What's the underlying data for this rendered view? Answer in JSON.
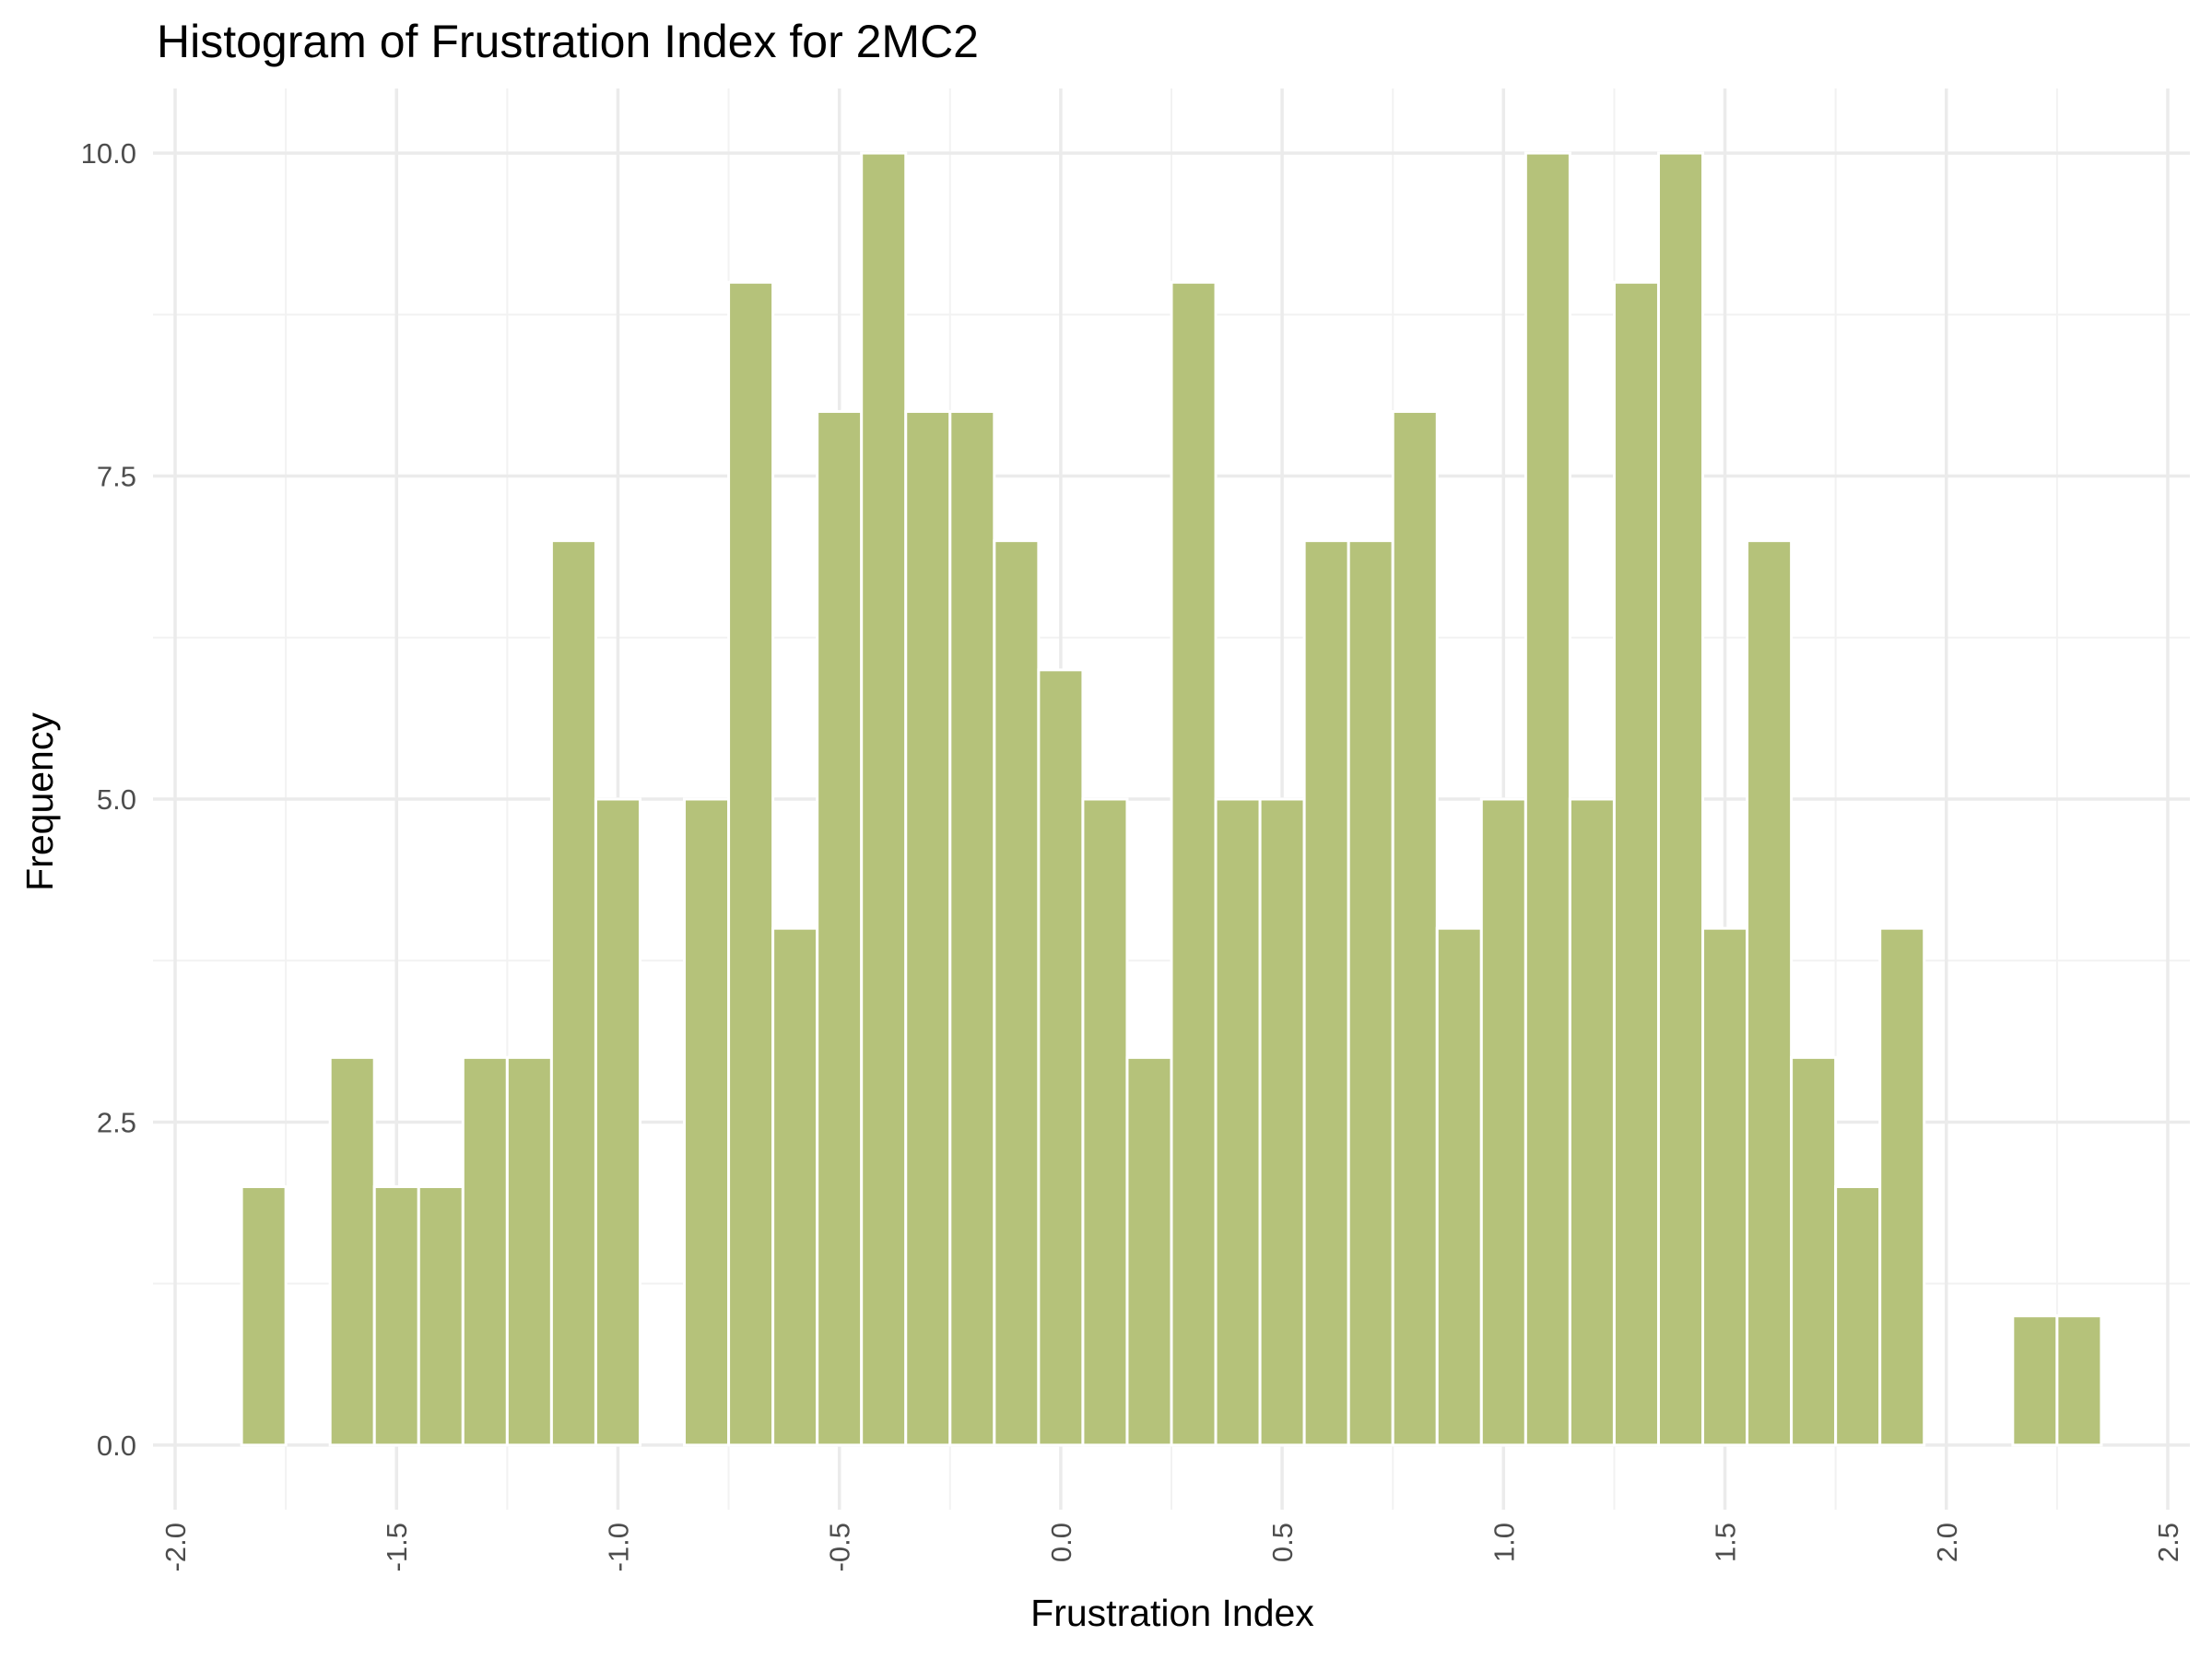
{
  "chart_data": {
    "type": "bar",
    "title": "Histogram of Frustration Index for 2MC2",
    "xlabel": "Frustration Index",
    "ylabel": "Frequency",
    "bin_width": 0.1,
    "bins": [
      {
        "start": -1.85,
        "end": -1.75,
        "count": 2
      },
      {
        "start": -1.75,
        "end": -1.65,
        "count": 0
      },
      {
        "start": -1.65,
        "end": -1.55,
        "count": 3
      },
      {
        "start": -1.55,
        "end": -1.45,
        "count": 2
      },
      {
        "start": -1.45,
        "end": -1.35,
        "count": 2
      },
      {
        "start": -1.35,
        "end": -1.25,
        "count": 3
      },
      {
        "start": -1.25,
        "end": -1.15,
        "count": 3
      },
      {
        "start": -1.15,
        "end": -1.05,
        "count": 7
      },
      {
        "start": -1.05,
        "end": -0.95,
        "count": 5
      },
      {
        "start": -0.95,
        "end": -0.85,
        "count": 0
      },
      {
        "start": -0.85,
        "end": -0.75,
        "count": 5
      },
      {
        "start": -0.75,
        "end": -0.65,
        "count": 9
      },
      {
        "start": -0.65,
        "end": -0.55,
        "count": 4
      },
      {
        "start": -0.55,
        "end": -0.45,
        "count": 8
      },
      {
        "start": -0.45,
        "end": -0.35,
        "count": 10
      },
      {
        "start": -0.35,
        "end": -0.25,
        "count": 8
      },
      {
        "start": -0.25,
        "end": -0.15,
        "count": 8
      },
      {
        "start": -0.15,
        "end": -0.05,
        "count": 7
      },
      {
        "start": -0.05,
        "end": 0.05,
        "count": 6
      },
      {
        "start": 0.05,
        "end": 0.15,
        "count": 5
      },
      {
        "start": 0.15,
        "end": 0.25,
        "count": 3
      },
      {
        "start": 0.25,
        "end": 0.35,
        "count": 9
      },
      {
        "start": 0.35,
        "end": 0.45,
        "count": 5
      },
      {
        "start": 0.45,
        "end": 0.55,
        "count": 5
      },
      {
        "start": 0.55,
        "end": 0.65,
        "count": 7
      },
      {
        "start": 0.65,
        "end": 0.75,
        "count": 7
      },
      {
        "start": 0.75,
        "end": 0.85,
        "count": 8
      },
      {
        "start": 0.85,
        "end": 0.95,
        "count": 4
      },
      {
        "start": 0.95,
        "end": 1.05,
        "count": 5
      },
      {
        "start": 1.05,
        "end": 1.15,
        "count": 10
      },
      {
        "start": 1.15,
        "end": 1.25,
        "count": 5
      },
      {
        "start": 1.25,
        "end": 1.35,
        "count": 9
      },
      {
        "start": 1.35,
        "end": 1.45,
        "count": 10
      },
      {
        "start": 1.45,
        "end": 1.55,
        "count": 4
      },
      {
        "start": 1.55,
        "end": 1.65,
        "count": 7
      },
      {
        "start": 1.65,
        "end": 1.75,
        "count": 3
      },
      {
        "start": 1.75,
        "end": 1.85,
        "count": 2
      },
      {
        "start": 1.85,
        "end": 1.95,
        "count": 4
      },
      {
        "start": 1.95,
        "end": 2.05,
        "count": 0
      },
      {
        "start": 2.05,
        "end": 2.15,
        "count": 0
      },
      {
        "start": 2.15,
        "end": 2.25,
        "count": 1
      },
      {
        "start": 2.25,
        "end": 2.35,
        "count": 1
      }
    ],
    "xlim": [
      -2.05,
      2.55
    ],
    "ylim": [
      -0.5,
      10.5
    ],
    "x_ticks": [
      "-2.0",
      "-1.5",
      "-1.0",
      "-0.5",
      "0.0",
      "0.5",
      "1.0",
      "1.5",
      "2.0",
      "2.5"
    ],
    "y_ticks": [
      "0.0",
      "2.5",
      "5.0",
      "7.5",
      "10.0"
    ],
    "bar_color": "#b5c27a",
    "grid": true,
    "legend": "none"
  }
}
